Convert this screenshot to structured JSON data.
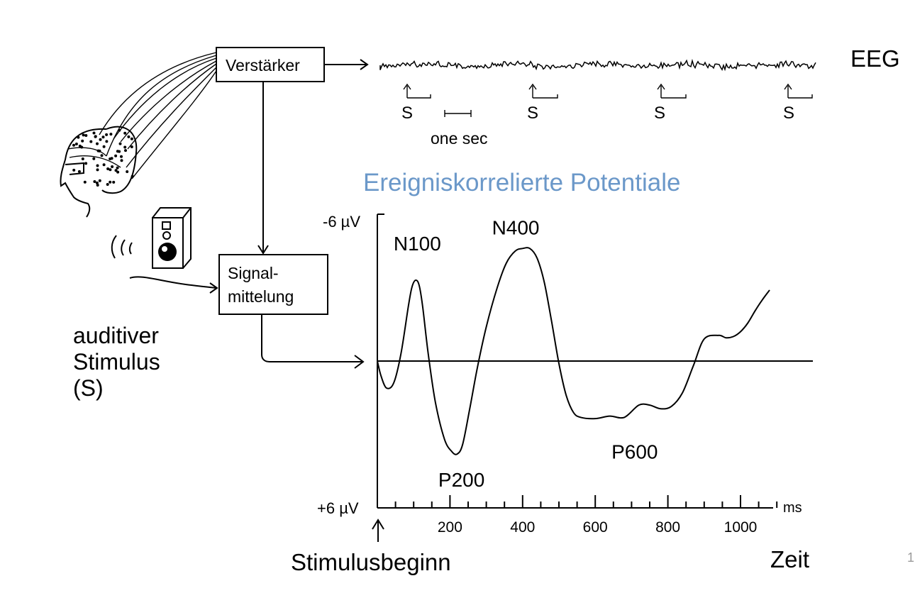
{
  "title": "Ereigniskorrelierte Potentiale",
  "eeg_label": "EEG",
  "amplifier_label": "Verstärker",
  "averaging_label_line1": "Signal-",
  "averaging_label_line2": "mittelung",
  "stimulus_label": [
    "auditiver",
    "Stimulus",
    "(S)"
  ],
  "stimulus_marker_label": "S",
  "scale_bar_label": "one sec",
  "onset_label": "Stimulusbeginn",
  "time_label": "Zeit",
  "slide_number": "1",
  "icons": {
    "head": "head-with-electrode-cap-icon",
    "speaker": "loudspeaker-icon",
    "sound": "sound-waves-icon"
  },
  "chart_data": {
    "type": "line",
    "x_unit_label": "ms",
    "y_top_label": "-6 µV",
    "y_bottom_label": "+6 µV",
    "ylim": [
      6,
      -6
    ],
    "xlim": [
      0,
      1100
    ],
    "x_ticks": [
      200,
      400,
      600,
      800,
      1000
    ],
    "x_minor_step": 50,
    "peaks": [
      {
        "name": "N100",
        "x": 110,
        "y": -3.3
      },
      {
        "name": "P200",
        "x": 220,
        "y": 3.8
      },
      {
        "name": "N400",
        "x": 420,
        "y": -4.6
      },
      {
        "name": "P600",
        "x": 650,
        "y": 2.3
      }
    ],
    "series": [
      {
        "x": [
          0,
          10,
          25,
          45,
          65,
          85,
          95,
          105,
          115,
          125,
          140,
          160,
          185,
          205,
          220,
          235,
          255,
          275,
          300,
          330,
          355,
          380,
          400,
          420,
          440,
          460,
          480,
          500,
          520,
          540,
          560,
          600,
          640,
          680,
          720,
          750,
          780,
          810,
          840,
          870,
          900,
          940,
          960,
          980,
          1000,
          1020,
          1040,
          1060,
          1080
        ],
        "y": [
          0,
          0.6,
          1.1,
          0.9,
          -0.3,
          -2.2,
          -3.0,
          -3.3,
          -3.1,
          -2.2,
          -0.3,
          1.7,
          3.2,
          3.7,
          3.8,
          3.4,
          1.9,
          0.3,
          -1.4,
          -3.0,
          -4.0,
          -4.5,
          -4.6,
          -4.6,
          -4.2,
          -3.2,
          -1.6,
          0.1,
          1.4,
          2.1,
          2.3,
          2.35,
          2.25,
          2.3,
          1.8,
          1.8,
          1.95,
          1.85,
          1.3,
          0.2,
          -0.9,
          -1.05,
          -0.95,
          -1.0,
          -1.2,
          -1.55,
          -2.05,
          -2.5,
          -2.9
        ]
      }
    ]
  }
}
